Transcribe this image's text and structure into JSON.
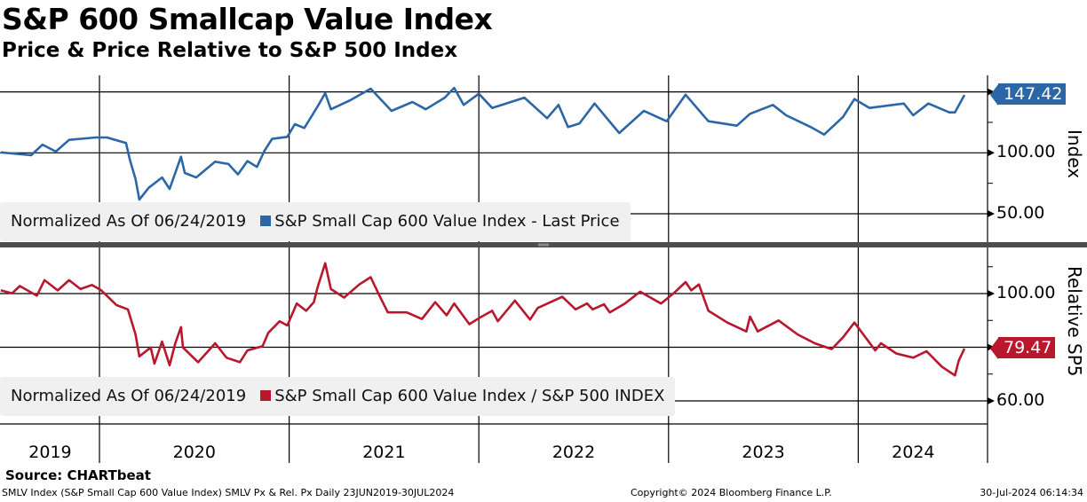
{
  "header": {
    "title": "S&P 600 Smallcap Value Index",
    "subtitle": "Price & Price Relative to S&P 500 Index"
  },
  "chart_data": [
    {
      "type": "line",
      "panel": "top",
      "ylabel": "Index",
      "ylim": [
        35,
        175
      ],
      "yticks": [
        50,
        100,
        150
      ],
      "ytick_labels": [
        "50.00",
        "100.00"
      ],
      "minor_ticks": [
        75,
        125
      ],
      "legend_note": "Normalized As Of 06/24/2019",
      "legend_label": "S&P Small Cap 600 Value Index - Last Price",
      "legend_placement": "bottom-left",
      "last_value": 147.42,
      "last_label": "147.42",
      "color": "#2b67a6",
      "series": [
        {
          "name": "S&P Small Cap 600 Value Index - Last Price",
          "x": [
            2019.48,
            2019.64,
            2019.7,
            2019.77,
            2019.84,
            2019.98,
            2020.04,
            2020.14,
            2020.16,
            2020.19,
            2020.21,
            2020.26,
            2020.33,
            2020.37,
            2020.43,
            2020.45,
            2020.51,
            2020.61,
            2020.68,
            2020.73,
            2020.78,
            2020.83,
            2020.87,
            2020.91,
            2020.99,
            2021.03,
            2021.08,
            2021.15,
            2021.19,
            2021.22,
            2021.32,
            2021.43,
            2021.54,
            2021.65,
            2021.72,
            2021.82,
            2021.87,
            2021.92,
            2022.0,
            2022.07,
            2022.24,
            2022.36,
            2022.42,
            2022.47,
            2022.53,
            2022.61,
            2022.74,
            2022.87,
            2022.99,
            2023.09,
            2023.21,
            2023.36,
            2023.43,
            2023.55,
            2023.62,
            2023.75,
            2023.82,
            2023.92,
            2023.98,
            2024.06,
            2024.24,
            2024.29,
            2024.37,
            2024.48,
            2024.51,
            2024.56
          ],
          "y": [
            100.4,
            98,
            106.7,
            101,
            110.6,
            112.6,
            112.6,
            108,
            94.4,
            78.6,
            61.6,
            71.3,
            79.8,
            70.4,
            96.8,
            83.5,
            79.8,
            92.7,
            90.8,
            82.3,
            93.2,
            88.4,
            101.7,
            111.4,
            113.1,
            123.5,
            120.4,
            138,
            149,
            135.7,
            143,
            152.6,
            134.4,
            141.7,
            135.7,
            145.3,
            153.3,
            139.3,
            148.5,
            136.8,
            145.3,
            128.4,
            139.3,
            121.1,
            124,
            140.5,
            116.2,
            134.4,
            125.9,
            147.7,
            125.9,
            122.3,
            132,
            139.3,
            130.8,
            121.1,
            115,
            129.5,
            144.1,
            136.8,
            140.5,
            130.8,
            140.5,
            133.2,
            133.2,
            147.42
          ]
        }
      ]
    },
    {
      "type": "line",
      "panel": "bottom",
      "ylabel": "Relative SP5",
      "ylim": [
        51,
        118
      ],
      "yticks": [
        60,
        80,
        100
      ],
      "ytick_labels": [
        "60.00",
        "100.00"
      ],
      "minor_ticks": [
        70,
        90,
        110
      ],
      "legend_note": "Normalized As Of 06/24/2019",
      "legend_label": "S&P Small Cap 600 Value Index / S&P 500 INDEX",
      "legend_placement": "bottom-left",
      "last_value": 79.47,
      "last_label": "79.47",
      "color": "#b8172e",
      "series": [
        {
          "name": "S&P Small Cap 600 Value Index / S&P 500 INDEX",
          "x": [
            2019.48,
            2019.54,
            2019.58,
            2019.67,
            2019.71,
            2019.78,
            2019.84,
            2019.9,
            2019.96,
            2020.01,
            2020.09,
            2020.15,
            2020.19,
            2020.21,
            2020.27,
            2020.29,
            2020.33,
            2020.37,
            2020.4,
            2020.43,
            2020.44,
            2020.52,
            2020.61,
            2020.67,
            2020.74,
            2020.78,
            2020.86,
            2020.89,
            2020.95,
            2020.99,
            2021.04,
            2021.09,
            2021.13,
            2021.15,
            2021.19,
            2021.22,
            2021.29,
            2021.37,
            2021.43,
            2021.47,
            2021.52,
            2021.62,
            2021.7,
            2021.77,
            2021.83,
            2021.87,
            2021.95,
            2022.0,
            2022.07,
            2022.1,
            2022.19,
            2022.27,
            2022.31,
            2022.44,
            2022.51,
            2022.57,
            2022.6,
            2022.66,
            2022.69,
            2022.77,
            2022.85,
            2022.96,
            2023.03,
            2023.09,
            2023.12,
            2023.16,
            2023.21,
            2023.31,
            2023.41,
            2023.43,
            2023.47,
            2023.58,
            2023.68,
            2023.77,
            2023.86,
            2023.92,
            2023.98,
            2024.09,
            2024.12,
            2024.2,
            2024.29,
            2024.36,
            2024.44,
            2024.51,
            2024.53,
            2024.56
          ],
          "y": [
            101.2,
            100.1,
            102.8,
            99.2,
            105,
            101.2,
            105,
            101.7,
            103.2,
            101.2,
            95.7,
            94.1,
            84.8,
            76.6,
            79.9,
            73.9,
            82.1,
            73.3,
            81.5,
            87.5,
            79.9,
            74.4,
            81.5,
            76.1,
            74.4,
            78.8,
            80.4,
            85.4,
            89.7,
            88.1,
            96.3,
            93.6,
            96.8,
            102.3,
            111.3,
            101.7,
            98.5,
            103.4,
            106.1,
            100.1,
            93,
            93,
            90.5,
            96.8,
            91.9,
            96.3,
            88.6,
            90.8,
            93.6,
            89.7,
            97.4,
            90.3,
            94.6,
            98.8,
            94.1,
            96.3,
            94.1,
            96,
            93,
            96.3,
            100.7,
            96.3,
            100.3,
            104.3,
            101.2,
            103.4,
            93.6,
            89.2,
            85.9,
            91.4,
            85.9,
            90,
            84.8,
            81.5,
            79.3,
            83.7,
            89.2,
            78.8,
            81.5,
            77.7,
            76.1,
            78.5,
            72.8,
            69.5,
            75,
            79.47
          ]
        }
      ]
    }
  ],
  "x_axis": {
    "years": [
      "2019",
      "2020",
      "2021",
      "2022",
      "2023",
      "2024"
    ],
    "year_starts": [
      2019.48,
      2020,
      2021,
      2022,
      2023,
      2024
    ],
    "year_ends": [
      2020,
      2021,
      2022,
      2023,
      2024,
      2024.58
    ]
  },
  "footer": {
    "source": "Source: CHARTbeat",
    "description": "SMLV Index (S&P Small Cap 600 Value Index) SMLV Px & Rel. Px  Daily 23JUN2019-30JUL2024",
    "copyright": "Copyright© 2024 Bloomberg Finance L.P.",
    "timestamp": "30-Jul-2024 06:14:34"
  }
}
